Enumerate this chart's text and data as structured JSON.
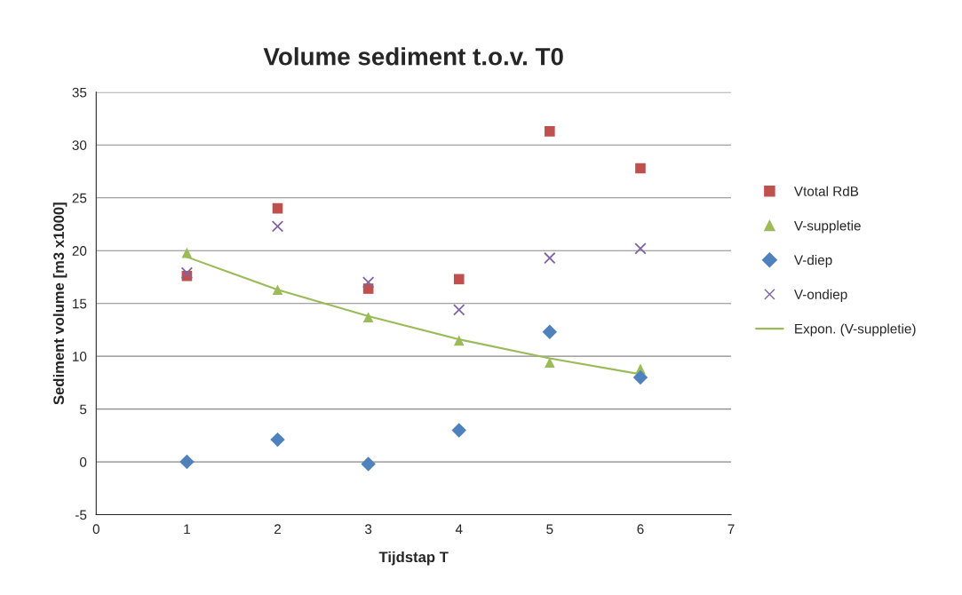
{
  "chart_data": {
    "type": "scatter",
    "title": "Volume sediment t.o.v. T0",
    "xlabel": "Tijdstap T",
    "ylabel": "Sediment volume [m3 x1000]",
    "xlim": [
      0,
      7
    ],
    "xticks": [
      0,
      1,
      2,
      3,
      4,
      5,
      6,
      7
    ],
    "ylim": [
      -5,
      35
    ],
    "yticks": [
      -5,
      0,
      5,
      10,
      15,
      20,
      25,
      30,
      35
    ],
    "grid": "y",
    "legend": "right",
    "series": [
      {
        "name": "Vtotal RdB",
        "color": "#c0504d",
        "marker": "square",
        "x": [
          1,
          2,
          3,
          4,
          5,
          6
        ],
        "values": [
          17.6,
          24.0,
          16.4,
          17.3,
          31.3,
          27.8
        ]
      },
      {
        "name": "V-suppletie",
        "color": "#9bbb59",
        "marker": "triangle",
        "x": [
          1,
          2,
          3,
          4,
          5,
          6
        ],
        "values": [
          19.8,
          16.3,
          13.7,
          11.5,
          9.4,
          8.8
        ]
      },
      {
        "name": "V-diep",
        "color": "#4f81bd",
        "marker": "diamond",
        "x": [
          1,
          2,
          3,
          4,
          5,
          6
        ],
        "values": [
          0.0,
          2.1,
          -0.2,
          3.0,
          12.3,
          8.0
        ]
      },
      {
        "name": "V-ondiep",
        "color": "#8064a2",
        "marker": "cross",
        "x": [
          1,
          2,
          3,
          4,
          5,
          6
        ],
        "values": [
          17.9,
          22.3,
          17.0,
          14.4,
          19.3,
          20.2
        ]
      },
      {
        "name": "Expon. (V-suppletie)",
        "type": "line",
        "color": "#9bbb59",
        "marker": "none",
        "line_style": "solid",
        "x": [
          1,
          2,
          3,
          4,
          5,
          6
        ],
        "values": [
          19.4,
          16.3,
          13.8,
          11.6,
          9.8,
          8.3
        ]
      }
    ]
  }
}
